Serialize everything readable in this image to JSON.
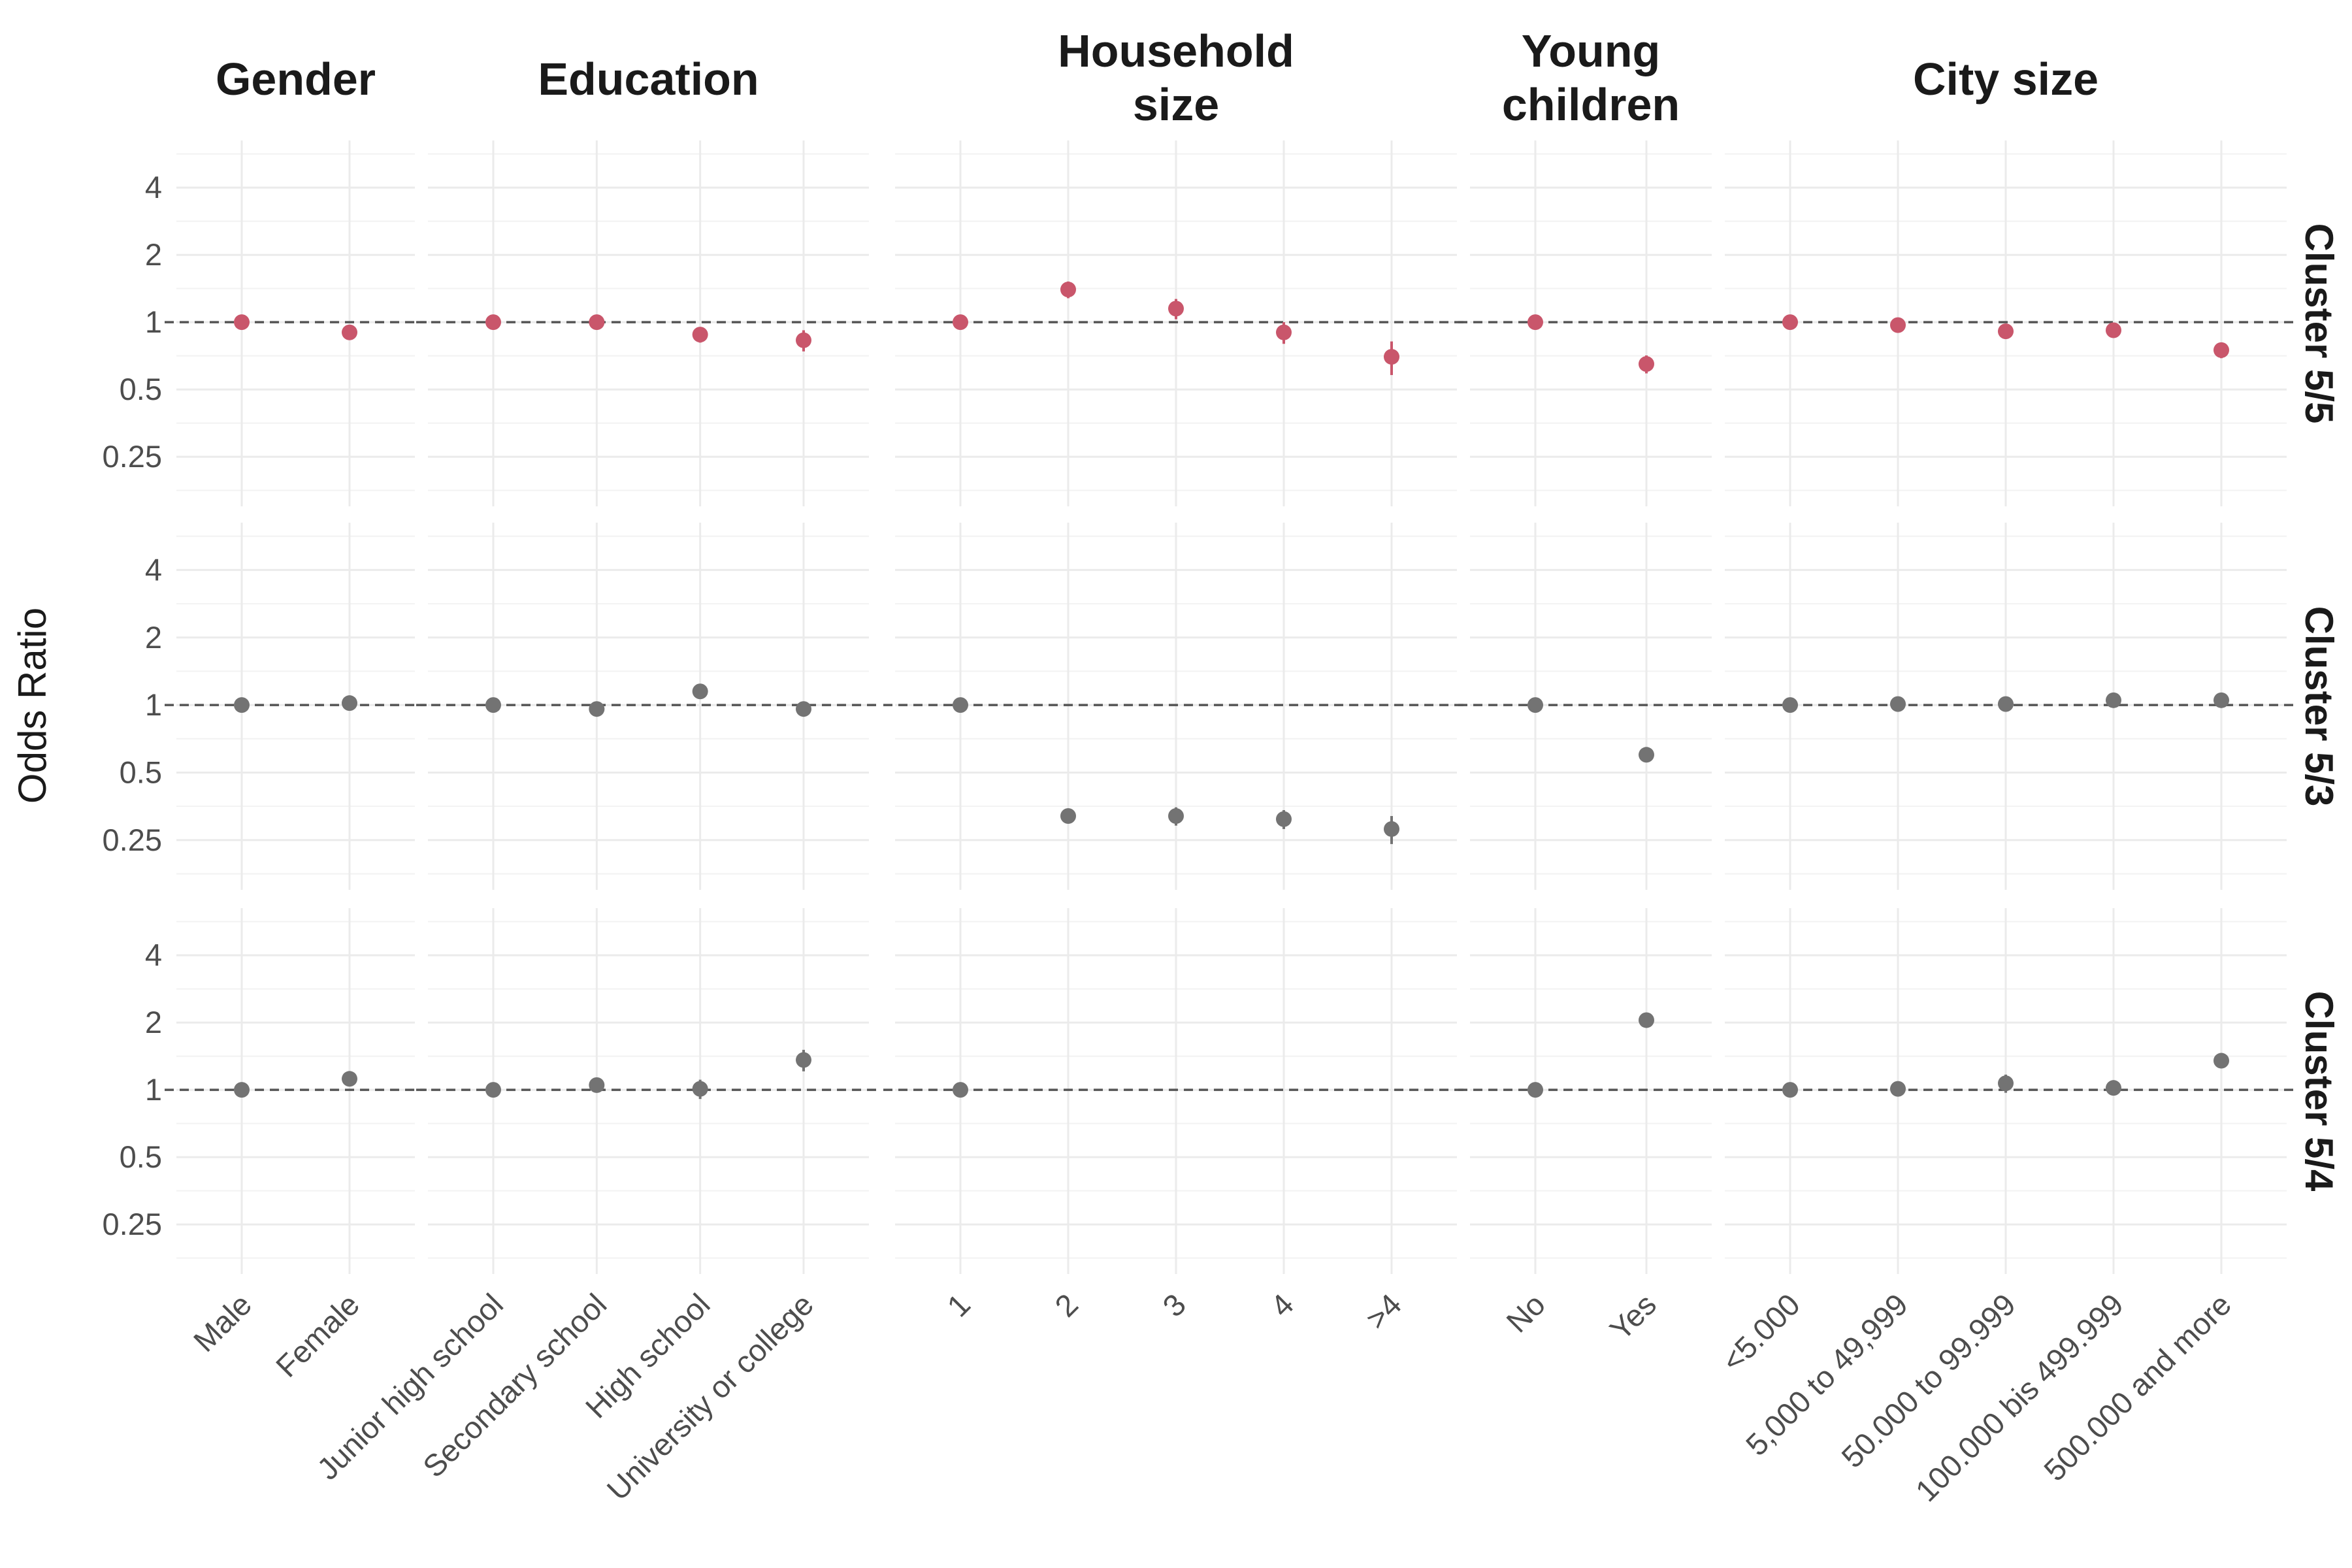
{
  "chart_data": {
    "type": "scatter",
    "ylabel": "Odds Ratio",
    "xlabel": "",
    "y_scale": "log2",
    "yticks": [
      0.25,
      0.5,
      1,
      2,
      4
    ],
    "ylim": [
      0.15,
      6.5
    ],
    "reference_line": 1,
    "grid": true,
    "colors": {
      "Cluster 5/5": "#c9566b",
      "Cluster 5/3": "#737373",
      "Cluster 5/4": "#737373"
    },
    "facets": [
      {
        "title": [
          "Gender"
        ],
        "categories": [
          "Male",
          "Female"
        ]
      },
      {
        "title": [
          "Education"
        ],
        "categories": [
          "Junior high school",
          "Secondary school",
          "High school",
          "University or college"
        ]
      },
      {
        "title": [
          "Household",
          "size"
        ],
        "categories": [
          "1",
          "2",
          "3",
          "4",
          ">4"
        ]
      },
      {
        "title": [
          "Young",
          "children"
        ],
        "categories": [
          "No",
          "Yes"
        ]
      },
      {
        "title": [
          "City size"
        ],
        "categories": [
          "<5.000",
          "5,000 to 49,999",
          "50.000 to 99.999",
          "100.000 bis 499.999",
          "500.000 and more"
        ]
      }
    ],
    "rows": [
      {
        "name": "Cluster 5/5",
        "values": [
          [
            1.0,
            0.9
          ],
          [
            1.0,
            1.0,
            0.88,
            0.83
          ],
          [
            1.0,
            1.4,
            1.15,
            0.9,
            0.7
          ],
          [
            1.0,
            0.65
          ],
          [
            1.0,
            0.97,
            0.91,
            0.92,
            0.75
          ]
        ],
        "errors": [
          [
            0,
            0.04
          ],
          [
            0,
            0.04,
            0.07,
            0.09
          ],
          [
            0,
            0.12,
            0.12,
            0.1,
            0.12
          ],
          [
            0,
            0.06
          ],
          [
            0,
            0.04,
            0.05,
            0.05,
            0.06
          ]
        ]
      },
      {
        "name": "Cluster 5/3",
        "values": [
          [
            1.0,
            1.02
          ],
          [
            1.0,
            0.96,
            1.15,
            0.96
          ],
          [
            1.0,
            0.32,
            0.32,
            0.31,
            0.28
          ],
          [
            1.0,
            0.6
          ],
          [
            1.0,
            1.01,
            1.01,
            1.05,
            1.05
          ]
        ],
        "errors": [
          [
            0,
            0.03
          ],
          [
            0,
            0.03,
            0.07,
            0.07
          ],
          [
            0,
            0.02,
            0.03,
            0.03,
            0.04
          ],
          [
            0,
            0.03
          ],
          [
            0,
            0.03,
            0.04,
            0.04,
            0.05
          ]
        ]
      },
      {
        "name": "Cluster 5/4",
        "values": [
          [
            1.0,
            1.12
          ],
          [
            1.0,
            1.05,
            1.01,
            1.36
          ],
          [
            1.0,
            null,
            null,
            null,
            null
          ],
          [
            1.0,
            2.05
          ],
          [
            1.0,
            1.01,
            1.07,
            1.02,
            1.35
          ]
        ],
        "errors": [
          [
            0,
            0.05
          ],
          [
            0,
            0.05,
            0.1,
            0.15
          ],
          [
            0,
            0,
            0,
            0,
            0
          ],
          [
            0,
            0.08
          ],
          [
            0,
            0.04,
            0.1,
            0.06,
            0.1
          ]
        ]
      }
    ]
  }
}
